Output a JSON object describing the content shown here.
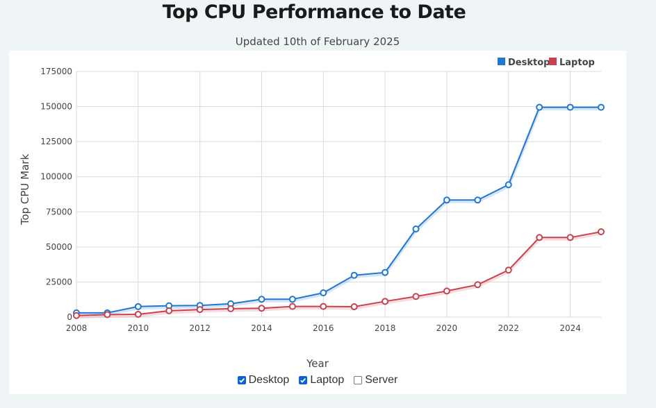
{
  "page": {
    "title": "Top CPU Performance to Date",
    "subtitle": "Updated 10th of February 2025"
  },
  "toggles": [
    {
      "label": "Desktop",
      "checked": true
    },
    {
      "label": "Laptop",
      "checked": true
    },
    {
      "label": "Server",
      "checked": false
    }
  ],
  "colors": {
    "desktop": "#1f77d0",
    "laptop": "#c8414e",
    "grid": "#d9d9d9",
    "checkbox": "#0b63d6"
  },
  "chart_data": {
    "type": "line",
    "title": "Top CPU Performance to Date",
    "subtitle": "Updated 10th of February 2025",
    "xlabel": "Year",
    "ylabel": "Top CPU Mark",
    "x": [
      2008,
      2009,
      2010,
      2011,
      2012,
      2013,
      2014,
      2015,
      2016,
      2017,
      2018,
      2019,
      2020,
      2021,
      2022,
      2023,
      2024,
      2025
    ],
    "xlim": [
      2008,
      2025
    ],
    "ylim": [
      0,
      175000
    ],
    "x_ticks": [
      "2008",
      "2010",
      "2012",
      "2014",
      "2016",
      "2018",
      "2020",
      "2022",
      "2024"
    ],
    "y_ticks": [
      "0",
      "25000",
      "50000",
      "75000",
      "100000",
      "125000",
      "150000",
      "175000"
    ],
    "grid": true,
    "legend_position": "top-right",
    "series": [
      {
        "name": "Desktop",
        "color": "#1f77d0",
        "values": [
          3000,
          3000,
          7500,
          8100,
          8300,
          9500,
          12700,
          12700,
          17300,
          29800,
          31800,
          62800,
          83400,
          83400,
          94300,
          149500,
          149500,
          149500
        ]
      },
      {
        "name": "Laptop",
        "color": "#c8414e",
        "values": [
          1100,
          1800,
          2000,
          4500,
          5400,
          6000,
          6300,
          7600,
          7600,
          7400,
          11200,
          14700,
          18600,
          23100,
          33500,
          56700,
          56700,
          60800
        ]
      }
    ]
  }
}
